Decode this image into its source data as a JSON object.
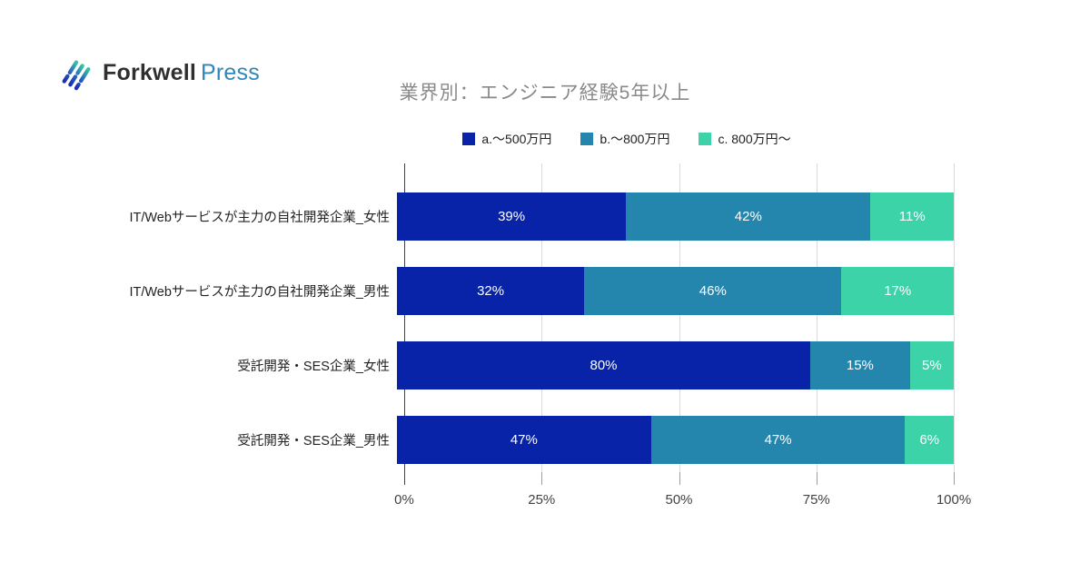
{
  "logo": {
    "brand": "Forkwell",
    "suffix": "Press",
    "brand_color": "#2f2f2f",
    "suffix_color": "#2e86ba",
    "icon_gradient": [
      "#1b2fb0",
      "#2a64c4",
      "#35c79f"
    ]
  },
  "chart_data": {
    "type": "bar",
    "stacked": true,
    "orientation": "horizontal",
    "normalized_to_100": true,
    "title": "業界別：エンジニア経験5年以上",
    "title_color": "#8a8a8a",
    "categories": [
      "IT/Webサービスが主力の自社開発企業_女性",
      "IT/Webサービスが主力の自社開発企業_男性",
      "受託開発・SES企業_女性",
      "受託開発・SES企業_男性"
    ],
    "series": [
      {
        "name": "a.～500万円",
        "color": "#0823a8",
        "values": [
          39,
          32,
          80,
          47
        ]
      },
      {
        "name": "b.～800万円",
        "color": "#2586ad",
        "values": [
          42,
          46,
          15,
          47
        ]
      },
      {
        "name": "c. 800万円～",
        "color": "#3dd3a8",
        "values": [
          11,
          17,
          5,
          6
        ]
      }
    ],
    "value_suffix": "%",
    "xlim": [
      0,
      100
    ],
    "x_ticks": [
      {
        "label": "0%",
        "value": 0
      },
      {
        "label": "25%",
        "value": 25
      },
      {
        "label": "50%",
        "value": 50
      },
      {
        "label": "75%",
        "value": 75
      },
      {
        "label": "100%",
        "value": 100
      }
    ],
    "legend_position": "top",
    "grid": "vertical",
    "grid_color": "#d9d9d9",
    "axis_color": "#424242",
    "tick_color": "#9e9e9e",
    "bar_label_color": "#ffffff"
  }
}
